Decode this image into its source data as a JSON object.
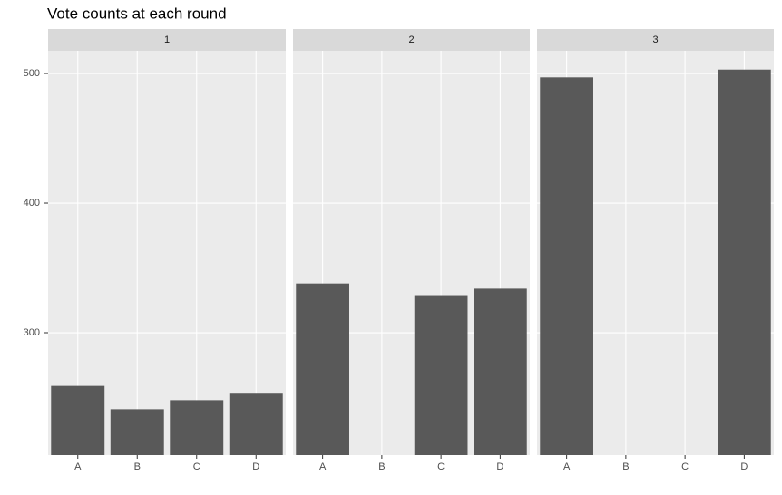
{
  "chart_data": {
    "type": "bar",
    "title": "Vote counts at each round",
    "facets": [
      {
        "label": "1",
        "categories": [
          "A",
          "B",
          "C",
          "D"
        ],
        "values": [
          259,
          241,
          248,
          253
        ]
      },
      {
        "label": "2",
        "categories": [
          "A",
          "B",
          "C",
          "D"
        ],
        "values": [
          338,
          null,
          329,
          334
        ]
      },
      {
        "label": "3",
        "categories": [
          "A",
          "B",
          "C",
          "D"
        ],
        "values": [
          497,
          null,
          null,
          503
        ]
      }
    ],
    "color": "#595959",
    "ylim": [
      205.6,
      517.5
    ],
    "yticks": [
      300,
      400,
      500
    ],
    "grid": true
  }
}
